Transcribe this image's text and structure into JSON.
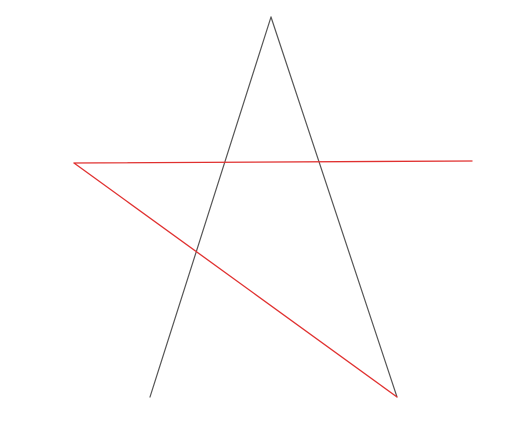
{
  "colors": {
    "background": "#ffffff",
    "dark_stroke": "#555555",
    "red_stroke": "#e0302f"
  },
  "drawing": {
    "shape": "star-sketch",
    "visible_strokes": 4,
    "dark_strokes": 2,
    "red_strokes": 2
  }
}
